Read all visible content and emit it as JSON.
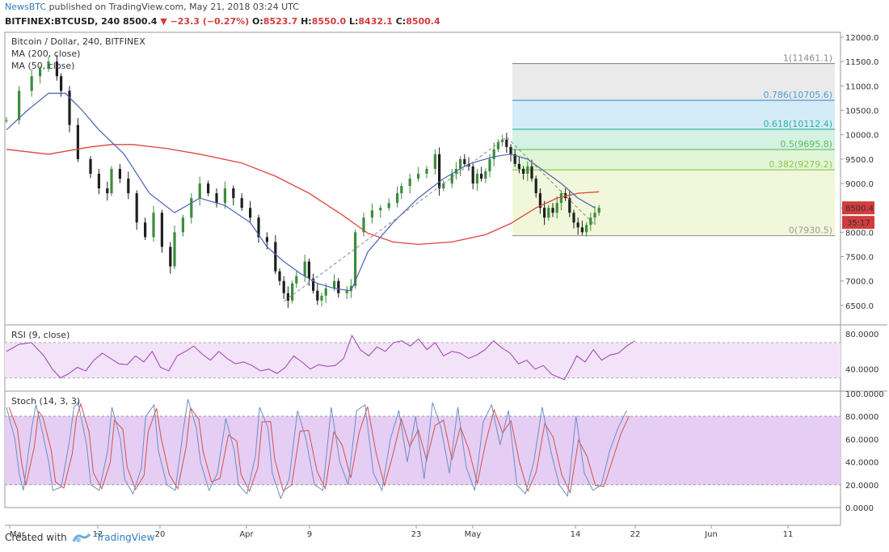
{
  "header": {
    "publisher": "NewsBTC",
    "published_text": "published on TradingView.com, May 21, 2018 03:24 UTC",
    "symbol": "BITFINEX:BTCUSD, 240",
    "last": "8500.4",
    "change": "−23.3 (−0.27%)",
    "open_label": "O:",
    "open": "8523.7",
    "high_label": "H:",
    "high": "8550.0",
    "low_label": "L:",
    "low": "8432.1",
    "close_label": "C:",
    "close": "8500.4"
  },
  "footer": {
    "created_with": "Created with",
    "brand": "TradingView"
  },
  "colors": {
    "up": "#3c8c3c",
    "down": "#1f1f1f",
    "ma200": "#e0433b",
    "ma50": "#4a64b0",
    "rsi": "#9c3fb4",
    "stoch_k": "#6b8fc7",
    "stoch_d": "#d0534a",
    "axis": "#555555"
  },
  "chart_data": [
    {
      "type": "candlestick",
      "title": "Bitcoin / Dollar, 240, BITFINEX",
      "indicators": [
        "MA (200, close)",
        "MA (50, close)"
      ],
      "y_ticks": [
        "12000.0",
        "11500.0",
        "11000.0",
        "10500.0",
        "10000.0",
        "9500.0",
        "9000.0",
        "8500.0",
        "8000.0",
        "7500.0",
        "7000.0",
        "6500.0"
      ],
      "ylim": [
        6100,
        12100
      ],
      "x_ticks": [
        "Mar",
        "12",
        "20",
        "Apr",
        "9",
        "23",
        "May",
        "14",
        "22",
        "Jun",
        "11"
      ],
      "price_tag": "8500.4",
      "countdown_tag": "35:17",
      "fibonacci_levels": [
        {
          "label": "1(11461.1)",
          "ratio": 1,
          "value": 11461.1
        },
        {
          "label": "0.786(10705.6)",
          "ratio": 0.786,
          "value": 10705.6
        },
        {
          "label": "0.618(10112.4)",
          "ratio": 0.618,
          "value": 10112.4
        },
        {
          "label": "0.5(9695.8)",
          "ratio": 0.5,
          "value": 9695.8
        },
        {
          "label": "0.382(9279.2)",
          "ratio": 0.382,
          "value": 9279.2
        },
        {
          "label": "0(7930.5)",
          "ratio": 0,
          "value": 7930.5
        }
      ],
      "close_path": [
        [
          0,
          10300
        ],
        [
          3,
          10900
        ],
        [
          6,
          11200
        ],
        [
          8,
          11350
        ],
        [
          10,
          11500
        ],
        [
          12,
          11200
        ],
        [
          13,
          10900
        ],
        [
          15,
          10200
        ],
        [
          17,
          9500
        ],
        [
          20,
          9200
        ],
        [
          22,
          8900
        ],
        [
          24,
          8800
        ],
        [
          25,
          9300
        ],
        [
          27,
          9100
        ],
        [
          29,
          8800
        ],
        [
          31,
          8200
        ],
        [
          33,
          7900
        ],
        [
          35,
          8400
        ],
        [
          37,
          7700
        ],
        [
          39,
          7300
        ],
        [
          40,
          8000
        ],
        [
          42,
          8300
        ],
        [
          44,
          8700
        ],
        [
          46,
          9000
        ],
        [
          48,
          8800
        ],
        [
          50,
          8600
        ],
        [
          52,
          8900
        ],
        [
          54,
          8700
        ],
        [
          56,
          8500
        ],
        [
          58,
          8300
        ],
        [
          60,
          7900
        ],
        [
          62,
          7800
        ],
        [
          64,
          7200
        ],
        [
          65,
          7000
        ],
        [
          66,
          6750
        ],
        [
          67,
          6600
        ],
        [
          68,
          6950
        ],
        [
          69,
          7100
        ],
        [
          71,
          7400
        ],
        [
          72,
          7050
        ],
        [
          73,
          6800
        ],
        [
          74,
          6600
        ],
        [
          75,
          6700
        ],
        [
          76,
          6850
        ],
        [
          78,
          7000
        ],
        [
          79,
          6750
        ],
        [
          81,
          6800
        ],
        [
          82,
          6900
        ],
        [
          83,
          8000
        ],
        [
          85,
          8300
        ],
        [
          87,
          8450
        ],
        [
          89,
          8500
        ],
        [
          91,
          8600
        ],
        [
          93,
          8800
        ],
        [
          94,
          8950
        ],
        [
          96,
          9100
        ],
        [
          98,
          9200
        ],
        [
          100,
          9300
        ],
        [
          102,
          9600
        ],
        [
          103,
          8900
        ],
        [
          104,
          9000
        ],
        [
          106,
          9200
        ],
        [
          107,
          9300
        ],
        [
          108,
          9500
        ],
        [
          109,
          9400
        ],
        [
          110,
          9350
        ],
        [
          111,
          9000
        ],
        [
          112,
          9200
        ],
        [
          113,
          9100
        ],
        [
          114,
          9250
        ],
        [
          115,
          9500
        ],
        [
          116,
          9700
        ],
        [
          117,
          9850
        ],
        [
          118,
          9900
        ],
        [
          119,
          9750
        ],
        [
          120,
          9600
        ],
        [
          121,
          9400
        ],
        [
          122,
          9300
        ],
        [
          123,
          9200
        ],
        [
          124,
          9350
        ],
        [
          125,
          9100
        ],
        [
          126,
          8800
        ],
        [
          127,
          8500
        ],
        [
          128,
          8300
        ],
        [
          129,
          8500
        ],
        [
          130,
          8400
        ],
        [
          131,
          8600
        ],
        [
          132,
          8800
        ],
        [
          133,
          8700
        ],
        [
          134,
          8400
        ],
        [
          135,
          8200
        ],
        [
          136,
          8100
        ],
        [
          137,
          8000
        ],
        [
          138,
          8150
        ],
        [
          139,
          8300
        ],
        [
          140,
          8400
        ],
        [
          141,
          8500
        ]
      ],
      "ma200_path": [
        [
          0,
          9700
        ],
        [
          10,
          9600
        ],
        [
          20,
          9750
        ],
        [
          25,
          9800
        ],
        [
          30,
          9800
        ],
        [
          38,
          9720
        ],
        [
          46,
          9600
        ],
        [
          56,
          9420
        ],
        [
          64,
          9150
        ],
        [
          72,
          8800
        ],
        [
          80,
          8350
        ],
        [
          86,
          7980
        ],
        [
          92,
          7800
        ],
        [
          98,
          7750
        ],
        [
          106,
          7800
        ],
        [
          114,
          7950
        ],
        [
          120,
          8180
        ],
        [
          126,
          8500
        ],
        [
          131,
          8700
        ],
        [
          136,
          8800
        ],
        [
          141,
          8830
        ]
      ],
      "ma50_path": [
        [
          0,
          10100
        ],
        [
          5,
          10500
        ],
        [
          10,
          10850
        ],
        [
          14,
          10850
        ],
        [
          18,
          10500
        ],
        [
          22,
          10100
        ],
        [
          28,
          9600
        ],
        [
          34,
          8800
        ],
        [
          40,
          8400
        ],
        [
          46,
          8700
        ],
        [
          52,
          8550
        ],
        [
          58,
          8200
        ],
        [
          62,
          7700
        ],
        [
          66,
          7400
        ],
        [
          70,
          7150
        ],
        [
          74,
          6950
        ],
        [
          78,
          6850
        ],
        [
          82,
          6800
        ],
        [
          86,
          7600
        ],
        [
          92,
          8200
        ],
        [
          98,
          8700
        ],
        [
          104,
          9100
        ],
        [
          110,
          9400
        ],
        [
          116,
          9550
        ],
        [
          120,
          9600
        ],
        [
          124,
          9500
        ],
        [
          128,
          9250
        ],
        [
          132,
          9000
        ],
        [
          136,
          8700
        ],
        [
          140,
          8500
        ]
      ],
      "trend_line": [
        [
          66,
          6580
        ],
        [
          119,
          9950
        ],
        [
          140,
          8150
        ]
      ]
    },
    {
      "type": "line",
      "title": "RSI (9, close)",
      "y_ticks": [
        "80.0000",
        "40.0000"
      ],
      "ylim": [
        15,
        90
      ],
      "band": [
        30,
        70
      ],
      "rsi_path": [
        [
          0,
          60
        ],
        [
          3,
          68
        ],
        [
          6,
          70
        ],
        [
          9,
          55
        ],
        [
          11,
          40
        ],
        [
          13,
          30
        ],
        [
          15,
          35
        ],
        [
          17,
          42
        ],
        [
          19,
          38
        ],
        [
          21,
          50
        ],
        [
          23,
          58
        ],
        [
          25,
          52
        ],
        [
          27,
          46
        ],
        [
          29,
          45
        ],
        [
          31,
          55
        ],
        [
          33,
          48
        ],
        [
          35,
          60
        ],
        [
          37,
          42
        ],
        [
          39,
          38
        ],
        [
          41,
          55
        ],
        [
          43,
          60
        ],
        [
          45,
          66
        ],
        [
          47,
          57
        ],
        [
          49,
          50
        ],
        [
          51,
          60
        ],
        [
          53,
          52
        ],
        [
          55,
          46
        ],
        [
          57,
          48
        ],
        [
          59,
          44
        ],
        [
          61,
          38
        ],
        [
          63,
          40
        ],
        [
          65,
          35
        ],
        [
          67,
          42
        ],
        [
          69,
          55
        ],
        [
          71,
          48
        ],
        [
          73,
          40
        ],
        [
          75,
          45
        ],
        [
          77,
          43
        ],
        [
          79,
          44
        ],
        [
          81,
          52
        ],
        [
          83,
          78
        ],
        [
          85,
          62
        ],
        [
          87,
          55
        ],
        [
          89,
          65
        ],
        [
          91,
          60
        ],
        [
          93,
          70
        ],
        [
          95,
          72
        ],
        [
          97,
          66
        ],
        [
          99,
          74
        ],
        [
          101,
          62
        ],
        [
          103,
          70
        ],
        [
          105,
          55
        ],
        [
          107,
          60
        ],
        [
          109,
          58
        ],
        [
          111,
          52
        ],
        [
          113,
          56
        ],
        [
          115,
          62
        ],
        [
          117,
          72
        ],
        [
          119,
          64
        ],
        [
          121,
          58
        ],
        [
          123,
          46
        ],
        [
          125,
          50
        ],
        [
          127,
          40
        ],
        [
          129,
          44
        ],
        [
          131,
          34
        ],
        [
          133,
          30
        ],
        [
          134,
          28
        ],
        [
          136,
          45
        ],
        [
          137,
          55
        ],
        [
          139,
          48
        ],
        [
          141,
          62
        ],
        [
          143,
          50
        ],
        [
          145,
          56
        ],
        [
          147,
          58
        ],
        [
          149,
          66
        ],
        [
          151,
          72
        ]
      ]
    },
    {
      "type": "line",
      "title": "Stoch (14, 3, 3)",
      "y_ticks": [
        "100.0000",
        "80.0000",
        "60.0000",
        "40.0000",
        "20.0000",
        "0.0000"
      ],
      "ylim": [
        0,
        102
      ],
      "band": [
        20,
        80
      ],
      "stoch_path": [
        [
          0,
          88
        ],
        [
          2,
          60
        ],
        [
          3,
          30
        ],
        [
          4,
          15
        ],
        [
          6,
          70
        ],
        [
          7,
          90
        ],
        [
          8,
          75
        ],
        [
          10,
          40
        ],
        [
          11,
          15
        ],
        [
          13,
          18
        ],
        [
          15,
          60
        ],
        [
          16,
          88
        ],
        [
          17,
          92
        ],
        [
          19,
          55
        ],
        [
          20,
          20
        ],
        [
          22,
          15
        ],
        [
          24,
          50
        ],
        [
          25,
          88
        ],
        [
          27,
          60
        ],
        [
          28,
          25
        ],
        [
          30,
          12
        ],
        [
          32,
          35
        ],
        [
          33,
          80
        ],
        [
          35,
          90
        ],
        [
          36,
          50
        ],
        [
          38,
          20
        ],
        [
          40,
          15
        ],
        [
          42,
          70
        ],
        [
          43,
          95
        ],
        [
          45,
          70
        ],
        [
          46,
          40
        ],
        [
          48,
          15
        ],
        [
          50,
          30
        ],
        [
          52,
          78
        ],
        [
          54,
          50
        ],
        [
          55,
          20
        ],
        [
          57,
          12
        ],
        [
          59,
          45
        ],
        [
          60,
          88
        ],
        [
          62,
          70
        ],
        [
          63,
          30
        ],
        [
          65,
          8
        ],
        [
          67,
          25
        ],
        [
          69,
          85
        ],
        [
          71,
          60
        ],
        [
          73,
          20
        ],
        [
          75,
          15
        ],
        [
          77,
          88
        ],
        [
          79,
          40
        ],
        [
          81,
          20
        ],
        [
          83,
          85
        ],
        [
          85,
          90
        ],
        [
          87,
          30
        ],
        [
          89,
          15
        ],
        [
          91,
          60
        ],
        [
          93,
          85
        ],
        [
          95,
          40
        ],
        [
          97,
          80
        ],
        [
          99,
          25
        ],
        [
          101,
          92
        ],
        [
          103,
          70
        ],
        [
          105,
          30
        ],
        [
          107,
          88
        ],
        [
          109,
          35
        ],
        [
          111,
          15
        ],
        [
          113,
          75
        ],
        [
          115,
          90
        ],
        [
          117,
          55
        ],
        [
          119,
          85
        ],
        [
          121,
          20
        ],
        [
          123,
          12
        ],
        [
          125,
          40
        ],
        [
          127,
          88
        ],
        [
          129,
          50
        ],
        [
          131,
          20
        ],
        [
          133,
          10
        ],
        [
          135,
          80
        ],
        [
          137,
          30
        ],
        [
          139,
          15
        ],
        [
          141,
          20
        ],
        [
          143,
          50
        ],
        [
          145,
          70
        ],
        [
          147,
          85
        ]
      ]
    }
  ]
}
